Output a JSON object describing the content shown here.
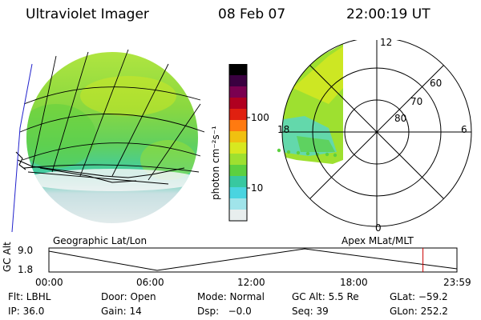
{
  "header": {
    "instrument": "Ultraviolet Imager",
    "date": "08 Feb 07",
    "time": "22:00:19 UT"
  },
  "colorbar": {
    "unit_label": "photon cm⁻²s⁻¹",
    "ticks": [
      "100",
      "10"
    ],
    "colors": [
      "#000000",
      "#3a0040",
      "#7a0050",
      "#b00020",
      "#e02010",
      "#ff7a10",
      "#f0c010",
      "#d8e820",
      "#9ee030",
      "#5cd040",
      "#38c8a0",
      "#4ad4e0",
      "#a0e4ea",
      "#e8eeee"
    ]
  },
  "geo_panel": {
    "label": "Geographic Lat/Lon"
  },
  "polar_panel": {
    "label": "Apex MLat/MLT",
    "mlt_labels": [
      "12",
      "18",
      "6",
      "0"
    ],
    "lat_labels": [
      "60",
      "70",
      "80"
    ]
  },
  "timeline": {
    "axis_label": "GC Alt",
    "y_ticks": [
      "9.0",
      "1.8"
    ],
    "x_ticks": [
      "00:00",
      "06:00",
      "12:00",
      "18:00",
      "23:59"
    ],
    "marker_time_hours": 22.0,
    "marker_color": "#cc0000"
  },
  "info": {
    "row1": [
      "Flt: LBHL",
      "Door: Open",
      "Mode: Normal",
      "GC Alt: 5.5 Re",
      "GLat: −59.2"
    ],
    "row2": [
      "IP: 36.0",
      "Gain: 14",
      "Dsp:   −0.0",
      "Seq: 39",
      "GLon: 252.2"
    ]
  }
}
